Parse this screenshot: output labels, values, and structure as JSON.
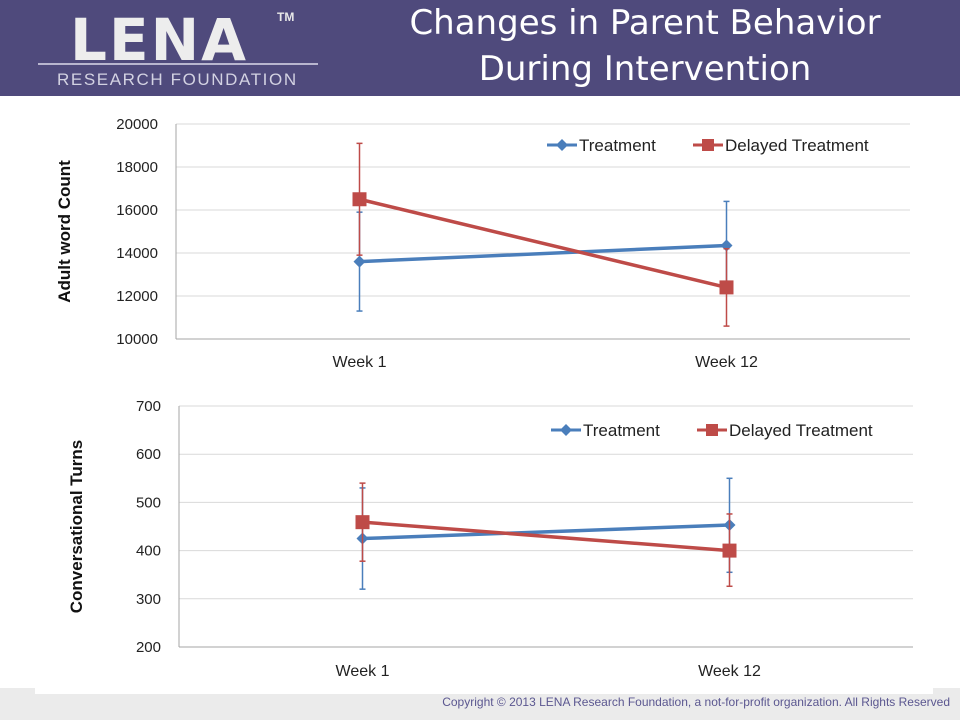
{
  "header": {
    "logo_wordmark": "LENA",
    "logo_tm": "TM",
    "logo_subtitle": "RESEARCH FOUNDATION",
    "title_line1": "Changes in Parent Behavior",
    "title_line2": "During Intervention"
  },
  "footer": {
    "copyright": "Copyright © 2013 LENA Research Foundation, a not-for-profit organization. All Rights Reserved"
  },
  "colors": {
    "header_bg": "#4f4a7c",
    "treatment": "#4a7ebb",
    "delayed_treatment": "#be4b48",
    "grid": "#d9d9d9"
  },
  "chart_data": [
    {
      "type": "line",
      "ylabel": "Adult word Count",
      "categories": [
        "Week 1",
        "Week 12"
      ],
      "ylim": [
        10000,
        20000
      ],
      "yticks": [
        10000,
        12000,
        14000,
        16000,
        18000,
        20000
      ],
      "legend_position": "top-right",
      "series": [
        {
          "name": "Treatment",
          "marker": "diamond",
          "color": "#4a7ebb",
          "values": [
            13600,
            14350
          ],
          "err_low": [
            11300,
            12300
          ],
          "err_high": [
            15900,
            16400
          ]
        },
        {
          "name": "Delayed Treatment",
          "marker": "square",
          "color": "#be4b48",
          "values": [
            16500,
            12400
          ],
          "err_low": [
            13900,
            10600
          ],
          "err_high": [
            19100,
            14200
          ]
        }
      ]
    },
    {
      "type": "line",
      "ylabel": "Conversational Turns",
      "categories": [
        "Week 1",
        "Week 12"
      ],
      "ylim": [
        200,
        700
      ],
      "yticks": [
        200,
        300,
        400,
        500,
        600,
        700
      ],
      "legend_position": "top-right",
      "series": [
        {
          "name": "Treatment",
          "marker": "diamond",
          "color": "#4a7ebb",
          "values": [
            425,
            453
          ],
          "err_low": [
            320,
            355
          ],
          "err_high": [
            530,
            550
          ]
        },
        {
          "name": "Delayed Treatment",
          "marker": "square",
          "color": "#be4b48",
          "values": [
            459,
            400
          ],
          "err_low": [
            378,
            326
          ],
          "err_high": [
            540,
            476
          ]
        }
      ]
    }
  ]
}
